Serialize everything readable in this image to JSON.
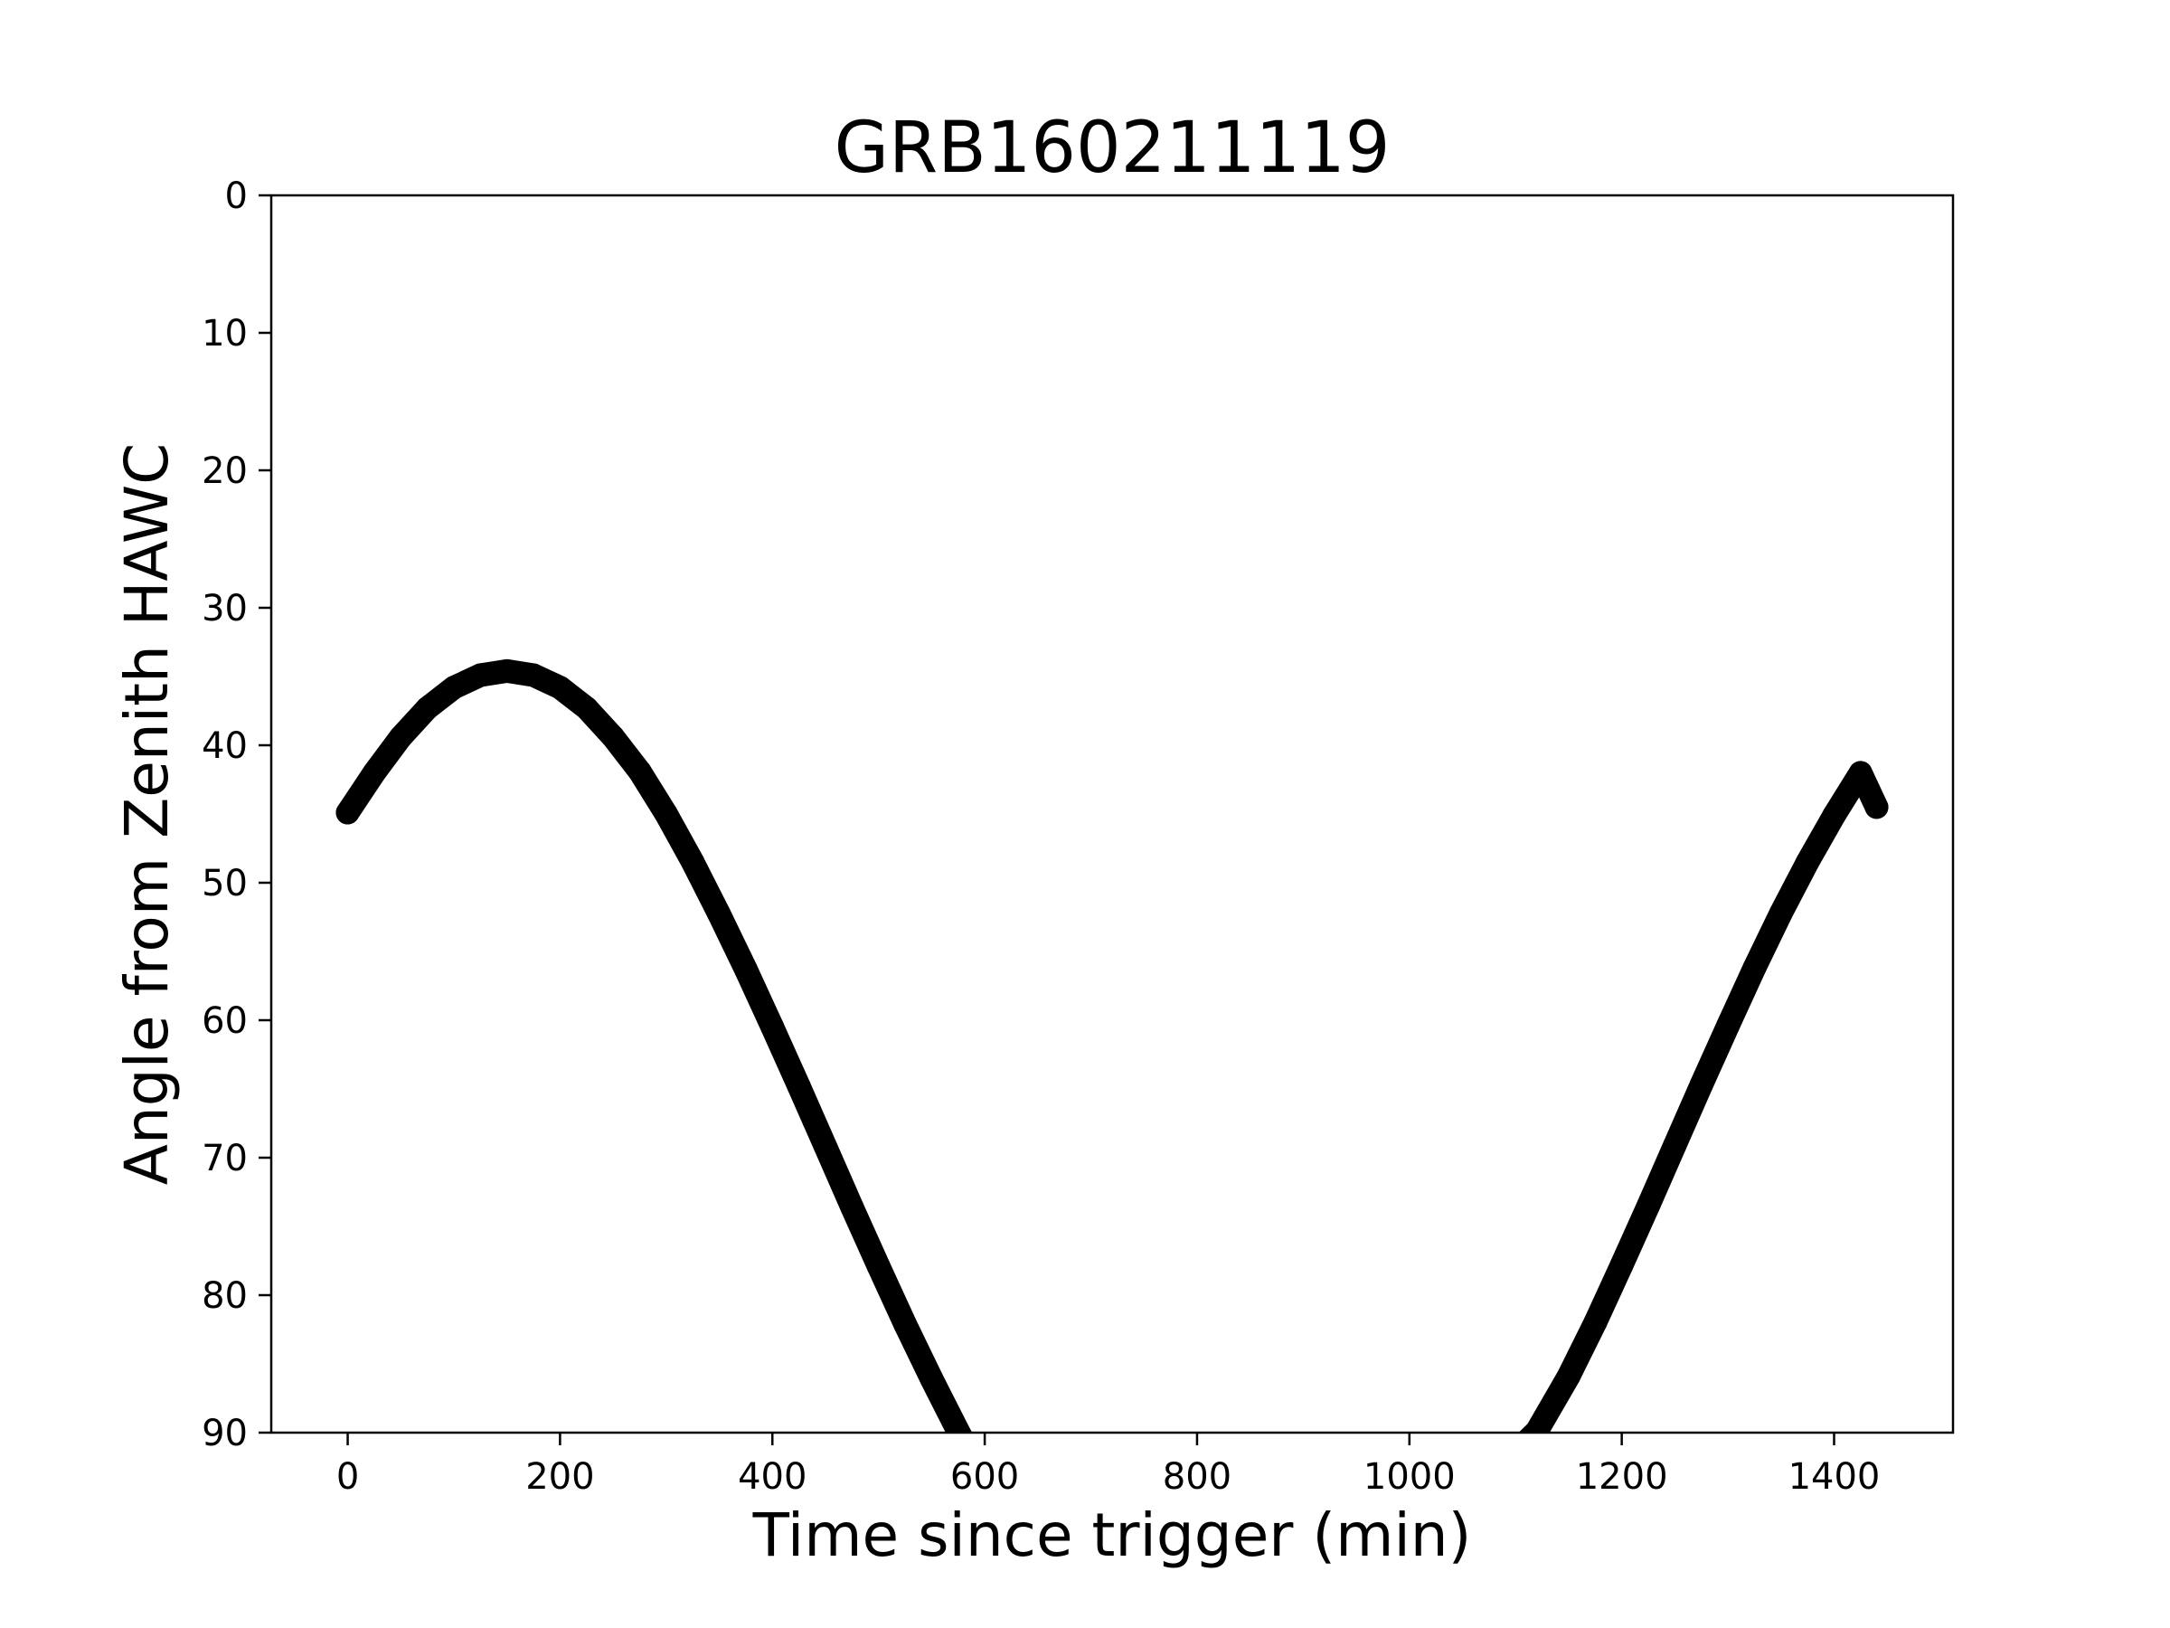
{
  "chart_data": {
    "type": "scatter",
    "title": "GRB160211119",
    "xlabel": "Time since trigger (min)",
    "ylabel": "Angle from Zenith HAWC",
    "xlim": [
      -72,
      1512
    ],
    "ylim": [
      90,
      0
    ],
    "y_inverted": true,
    "grid": false,
    "xticks": [
      0,
      200,
      400,
      600,
      800,
      1000,
      1200,
      1400
    ],
    "yticks": [
      0,
      10,
      20,
      30,
      40,
      50,
      60,
      70,
      80,
      90
    ],
    "marker_color": "#000000",
    "series": [
      {
        "segments": [
          {
            "x": [
              0,
              25,
              50,
              75,
              100,
              125,
              150,
              175,
              200,
              225,
              250,
              275,
              300,
              325,
              350,
              375,
              400,
              425,
              450,
              475,
              500,
              525,
              550,
              575,
              600,
              620
            ],
            "y": [
              44.9,
              42.0,
              39.4,
              37.3,
              35.8,
              34.9,
              34.6,
              34.9,
              35.8,
              37.3,
              39.4,
              41.9,
              45.0,
              48.5,
              52.3,
              56.3,
              60.5,
              64.8,
              69.2,
              73.6,
              77.9,
              82.1,
              86.1,
              89.9,
              93.5,
              96.0
            ]
          },
          {
            "x": [
              1100,
              1120,
              1150,
              1175,
              1200,
              1225,
              1250,
              1275,
              1300,
              1325,
              1350,
              1375,
              1400,
              1425,
              1440
            ],
            "y": [
              91.4,
              89.9,
              85.9,
              82.0,
              77.8,
              73.5,
              69.1,
              64.7,
              60.4,
              56.2,
              52.2,
              48.5,
              45.1,
              42.0,
              44.5
            ]
          }
        ]
      }
    ]
  }
}
